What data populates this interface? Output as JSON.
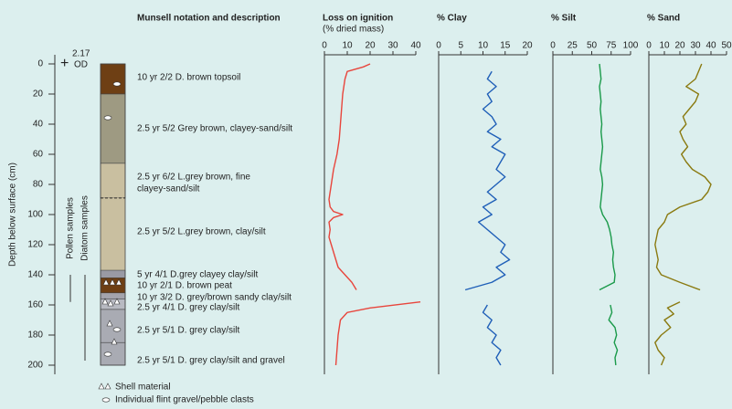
{
  "chart_data": [
    {
      "type": "strata",
      "title": "Munsell notation and description",
      "ylabel": "Depth below surface (cm)",
      "ylim": [
        0,
        200
      ],
      "yticks": [
        0,
        20,
        40,
        60,
        80,
        100,
        120,
        140,
        160,
        180,
        200
      ],
      "datum": [
        "+",
        "2.17",
        "OD"
      ],
      "layers": [
        {
          "top": 0,
          "bottom": 20,
          "color": "#6e3f14",
          "label": [
            "10 yr 2/2 D. brown topsoil"
          ]
        },
        {
          "top": 20,
          "bottom": 66,
          "color": "#9e9a82",
          "label": [
            "2.5 yr 5/2 Grey brown, clayey-sand/silt"
          ]
        },
        {
          "top": 66,
          "bottom": 89,
          "color": "#c9bfa0",
          "label": [
            "2.5 yr 6/2 L.grey brown, fine",
            "clayey-sand/silt"
          ]
        },
        {
          "top": 89,
          "bottom": 137,
          "color": "#c9bfa0",
          "label": [
            "2.5 yr 5/2 L.grey brown, clay/silt"
          ]
        },
        {
          "top": 137,
          "bottom": 142,
          "color": "#9a9aa4",
          "label": [
            "5 yr 4/1 D.grey clayey clay/silt"
          ]
        },
        {
          "top": 142,
          "bottom": 152,
          "color": "#6e3f14",
          "label": [
            "10 yr 2/1 D. brown peat"
          ]
        },
        {
          "top": 152,
          "bottom": 156,
          "color": "#a4a4ac",
          "label": [
            "10 yr 3/2 D. grey/brown sandy clay/silt"
          ]
        },
        {
          "top": 156,
          "bottom": 163,
          "color": "#b8bac2",
          "label": [
            "2.5 yr 4/1 D. grey clay/silt"
          ]
        },
        {
          "top": 163,
          "bottom": 185,
          "color": "#a9abb3",
          "label": [
            "2.5 yr 5/1 D. grey clay/silt"
          ]
        },
        {
          "top": 185,
          "bottom": 200,
          "color": "#a9abb3",
          "label": [
            "2.5 yr 5/1 D. grey clay/silt and gravel"
          ]
        }
      ],
      "samples": [
        {
          "name": "Pollen samples",
          "top": 140,
          "bottom": 158
        },
        {
          "name": "Diatom samples",
          "top": 140,
          "bottom": 197
        }
      ],
      "legend": [
        "Shell material",
        "Individual flint gravel/pebble clasts"
      ]
    },
    {
      "type": "line",
      "title": "Loss on ignition",
      "subtitle": "(% dried mass)",
      "color": "#e8453c",
      "xlim": [
        0,
        40
      ],
      "xticks": [
        0,
        10,
        20,
        30,
        40
      ],
      "depth": [
        0,
        2,
        5,
        10,
        15,
        20,
        30,
        40,
        50,
        60,
        70,
        80,
        90,
        95,
        98,
        100,
        102,
        105,
        110,
        115,
        120,
        125,
        130,
        135,
        140,
        145,
        150,
        153,
        158,
        162,
        165,
        170,
        180,
        190,
        200
      ],
      "values": [
        20,
        17,
        10,
        9,
        8.5,
        8,
        7.5,
        7,
        6.5,
        5.5,
        4,
        3,
        2,
        2.5,
        4,
        8,
        4,
        2,
        2.5,
        2,
        3,
        4,
        5,
        6,
        9,
        12,
        14,
        null,
        42,
        20,
        10,
        7,
        6,
        5.5,
        5
      ]
    },
    {
      "type": "line",
      "title": "% Clay",
      "color": "#1f5fb8",
      "xlim": [
        0,
        20
      ],
      "xticks": [
        0,
        5,
        10,
        15,
        20
      ],
      "depth": [
        5,
        10,
        15,
        20,
        25,
        30,
        35,
        40,
        45,
        50,
        55,
        60,
        65,
        70,
        75,
        80,
        85,
        90,
        95,
        100,
        105,
        110,
        115,
        120,
        125,
        130,
        135,
        140,
        145,
        150,
        155,
        160,
        165,
        170,
        175,
        180,
        185,
        190,
        195,
        200
      ],
      "values": [
        12,
        11,
        13,
        11,
        12,
        10,
        12,
        13,
        11,
        14,
        12,
        15,
        14,
        13,
        15,
        13,
        11,
        13,
        10,
        12,
        9,
        11,
        13,
        15,
        14,
        16,
        13,
        15,
        12,
        6,
        null,
        11,
        10,
        12,
        11,
        13,
        12,
        14,
        13,
        14
      ]
    },
    {
      "type": "line",
      "title": "% Silt",
      "color": "#1a9a4a",
      "xlim": [
        0,
        100
      ],
      "xticks": [
        0,
        25,
        50,
        75,
        100
      ],
      "depth": [
        0,
        5,
        10,
        15,
        20,
        25,
        30,
        35,
        40,
        45,
        50,
        55,
        60,
        65,
        70,
        75,
        80,
        85,
        90,
        95,
        100,
        105,
        110,
        115,
        120,
        125,
        130,
        135,
        140,
        145,
        150,
        155,
        160,
        165,
        170,
        175,
        180,
        185,
        190,
        195,
        200
      ],
      "values": [
        60,
        61,
        62,
        60,
        61,
        62,
        61,
        62,
        63,
        62,
        63,
        64,
        63,
        62,
        61,
        63,
        64,
        63,
        62,
        61,
        64,
        70,
        73,
        75,
        76,
        78,
        77,
        78,
        80,
        79,
        60,
        null,
        74,
        76,
        72,
        80,
        82,
        79,
        83,
        80,
        81
      ]
    },
    {
      "type": "line",
      "title": "% Sand",
      "color": "#8a7a10",
      "xlim": [
        0,
        50
      ],
      "xticks": [
        0,
        10,
        20,
        30,
        40,
        50
      ],
      "depth": [
        0,
        5,
        10,
        15,
        20,
        25,
        30,
        35,
        40,
        45,
        50,
        55,
        60,
        65,
        70,
        75,
        80,
        85,
        90,
        95,
        100,
        105,
        110,
        115,
        120,
        125,
        130,
        135,
        140,
        145,
        150,
        155,
        158,
        162,
        166,
        170,
        175,
        180,
        185,
        190,
        195,
        200
      ],
      "values": [
        34,
        32,
        30,
        24,
        32,
        30,
        26,
        22,
        24,
        20,
        22,
        25,
        21,
        24,
        28,
        36,
        40,
        38,
        34,
        20,
        12,
        10,
        6,
        5,
        4,
        5,
        6,
        5,
        8,
        20,
        33,
        null,
        20,
        12,
        16,
        10,
        14,
        8,
        4,
        6,
        10,
        8
      ]
    }
  ]
}
